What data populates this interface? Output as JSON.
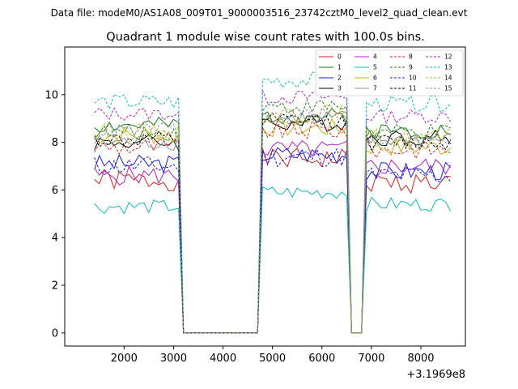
{
  "chart_data": {
    "type": "line",
    "suptitle": "Data file: modeM0/AS1A08_009T01_9000003516_23742cztM0_level2_quad_clean.evt",
    "title": "Quadrant 1 module wise count rates with 100.0s bins.",
    "xlabel": "",
    "ylabel": "",
    "offset_label": "+3.1969e8",
    "xlim": [
      800,
      8900
    ],
    "ylim": [
      -0.55,
      12.0
    ],
    "xticks": [
      2000,
      3000,
      4000,
      5000,
      6000,
      7000,
      8000
    ],
    "yticks": [
      0,
      2,
      4,
      6,
      8,
      10
    ],
    "grid": false,
    "legend_position": "top-right",
    "x_segments": [
      {
        "start": 1400,
        "count": 18
      },
      {
        "start": 3200,
        "count": 16
      },
      {
        "start": 4800,
        "count": 18
      },
      {
        "start": 6600,
        "count": 3
      },
      {
        "start": 6900,
        "count": 18
      }
    ],
    "series": [
      {
        "name": "0",
        "color": "#d62020",
        "dash": false,
        "base": [
          6.4,
          0,
          7.3,
          0,
          6.3
        ],
        "amp": 0.45,
        "seed": 1
      },
      {
        "name": "1",
        "color": "#1a7a1a",
        "dash": false,
        "base": [
          8.7,
          0,
          9.1,
          0,
          8.5
        ],
        "amp": 0.35,
        "seed": 2
      },
      {
        "name": "2",
        "color": "#1a1ad6",
        "dash": false,
        "base": [
          7.1,
          0,
          7.5,
          0,
          6.8
        ],
        "amp": 0.4,
        "seed": 3
      },
      {
        "name": "3",
        "color": "#000000",
        "dash": false,
        "base": [
          8.0,
          0,
          8.8,
          0,
          8.2
        ],
        "amp": 0.35,
        "seed": 4
      },
      {
        "name": "4",
        "color": "#b020c0",
        "dash": false,
        "base": [
          6.6,
          0,
          7.7,
          0,
          7.0
        ],
        "amp": 0.4,
        "seed": 5
      },
      {
        "name": "5",
        "color": "#10b8b8",
        "dash": false,
        "base": [
          5.3,
          0,
          5.9,
          0,
          5.4
        ],
        "amp": 0.3,
        "seed": 6
      },
      {
        "name": "6",
        "color": "#c0b010",
        "dash": false,
        "base": [
          8.3,
          0,
          8.6,
          0,
          7.8
        ],
        "amp": 0.4,
        "seed": 7
      },
      {
        "name": "7",
        "color": "#909090",
        "dash": false,
        "base": [
          8.0,
          0,
          9.0,
          0,
          8.1
        ],
        "amp": 0.35,
        "seed": 8
      },
      {
        "name": "8",
        "color": "#d62020",
        "dash": true,
        "base": [
          7.8,
          0,
          8.5,
          0,
          7.7
        ],
        "amp": 0.4,
        "seed": 9
      },
      {
        "name": "9",
        "color": "#1a7a1a",
        "dash": true,
        "base": [
          8.4,
          0,
          9.5,
          0,
          8.4
        ],
        "amp": 0.35,
        "seed": 10
      },
      {
        "name": "10",
        "color": "#1a1ad6",
        "dash": true,
        "base": [
          7.0,
          0,
          7.4,
          0,
          6.6
        ],
        "amp": 0.45,
        "seed": 11
      },
      {
        "name": "11",
        "color": "#000000",
        "dash": true,
        "base": [
          8.1,
          0,
          8.9,
          0,
          8.0
        ],
        "amp": 0.35,
        "seed": 12
      },
      {
        "name": "12",
        "color": "#b020c0",
        "dash": true,
        "base": [
          9.2,
          0,
          9.9,
          0,
          9.1
        ],
        "amp": 0.3,
        "seed": 13
      },
      {
        "name": "13",
        "color": "#10b8b8",
        "dash": true,
        "base": [
          9.7,
          0,
          10.6,
          0,
          9.6
        ],
        "amp": 0.35,
        "seed": 14
      },
      {
        "name": "14",
        "color": "#c0b010",
        "dash": true,
        "base": [
          8.4,
          0,
          9.2,
          0,
          8.2
        ],
        "amp": 0.4,
        "seed": 15
      },
      {
        "name": "15",
        "color": "#909090",
        "dash": true,
        "base": [
          8.5,
          0,
          9.1,
          0,
          8.1
        ],
        "amp": 0.35,
        "seed": 16
      }
    ]
  }
}
